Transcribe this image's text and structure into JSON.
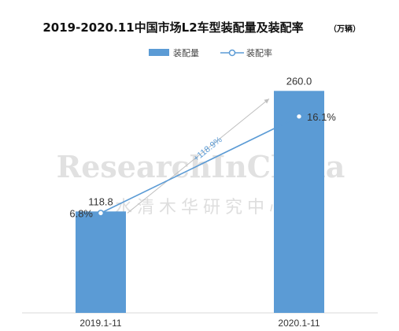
{
  "title": "2019-2020.11中国市场L2车型装配量及装配率",
  "unit": "（万辆）",
  "legend": {
    "bar_label": "装配量",
    "line_label": "装配率"
  },
  "watermark": {
    "en": "ResearchInChina",
    "cn": "水清木华研究中心"
  },
  "growth_annotation": "+118.9%",
  "colors": {
    "bar": "#5b9bd5",
    "line": "#5b9bd5",
    "marker_fill": "#ffffff",
    "axis": "#d9d9d9",
    "arrow": "#bfbfbf"
  },
  "chart_data": {
    "type": "bar",
    "categories": [
      "2019.1-11",
      "2020.1-11"
    ],
    "series": [
      {
        "name": "装配量",
        "type": "bar",
        "values": [
          118.8,
          260.0
        ],
        "labels": [
          "118.8",
          "260.0"
        ]
      },
      {
        "name": "装配率",
        "type": "line",
        "values": [
          6.8,
          16.1
        ],
        "labels": [
          "6.8%",
          "16.1%"
        ]
      }
    ],
    "title": "2019-2020.11中国市场L2车型装配量及装配率",
    "xlabel": "",
    "ylabel": "",
    "ylim": [
      0,
      300
    ],
    "y2lim": [
      0,
      22
    ],
    "grid": false,
    "legend_position": "top-center"
  }
}
